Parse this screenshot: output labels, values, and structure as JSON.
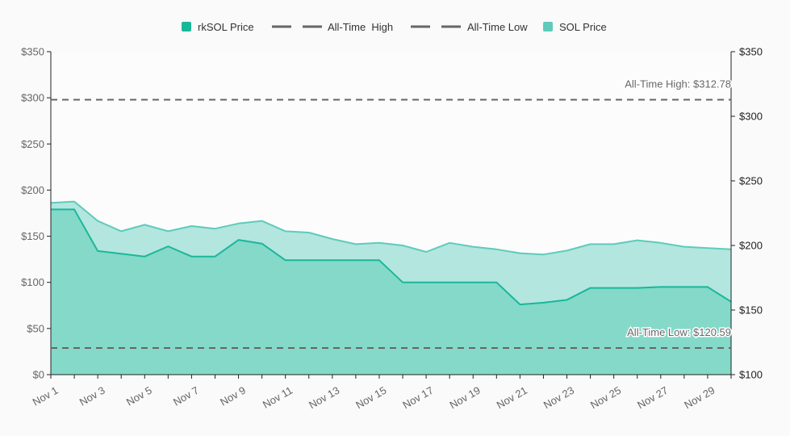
{
  "colors": {
    "rksol": "#1ab79a",
    "rksol_fill": "#85d9c9",
    "sol": "#5ecbbb",
    "sol_fill": "#b3e6df",
    "reference_line": "#666666",
    "axis": "#222222",
    "text": "#666666",
    "background": "#fafafa"
  },
  "chart_data": {
    "type": "area",
    "title": "",
    "xlabel": "",
    "ylabel": "",
    "grid": false,
    "legend_position": "top-center",
    "legend": [
      "rkSOL Price",
      "All-Time  High",
      "All-Time Low",
      "SOL Price"
    ],
    "x": [
      "Nov 1",
      "Nov 2",
      "Nov 3",
      "Nov 4",
      "Nov 5",
      "Nov 6",
      "Nov 7",
      "Nov 8",
      "Nov 9",
      "Nov 10",
      "Nov 11",
      "Nov 12",
      "Nov 13",
      "Nov 14",
      "Nov 15",
      "Nov 16",
      "Nov 17",
      "Nov 18",
      "Nov 19",
      "Nov 20",
      "Nov 21",
      "Nov 22",
      "Nov 23",
      "Nov 24",
      "Nov 25",
      "Nov 26",
      "Nov 27",
      "Nov 28",
      "Nov 29",
      "Nov 30"
    ],
    "x_tick_labels": [
      "Nov 1",
      "Nov 3",
      "Nov 5",
      "Nov 7",
      "Nov 9",
      "Nov 11",
      "Nov 13",
      "Nov 15",
      "Nov 17",
      "Nov 19",
      "Nov 21",
      "Nov 23",
      "Nov 25",
      "Nov 27",
      "Nov 29"
    ],
    "series": [
      {
        "name": "rkSOL Price",
        "axis": "left",
        "values": [
          179,
          179,
          134,
          131,
          128,
          139,
          128,
          128,
          146,
          142,
          124,
          124,
          124,
          124,
          124,
          100,
          100,
          100,
          100,
          100,
          76,
          78,
          81,
          94,
          94,
          94,
          95,
          95,
          95,
          79
        ]
      },
      {
        "name": "SOL Price",
        "axis": "right",
        "values": [
          233,
          234,
          219,
          211,
          216,
          211,
          215,
          213,
          217,
          219,
          211,
          210,
          205,
          201,
          202,
          200,
          195,
          202,
          199,
          197,
          194,
          193,
          196,
          201,
          201,
          204,
          202,
          199,
          198,
          197
        ]
      }
    ],
    "left_axis": {
      "ylim": [
        0,
        350
      ],
      "ticks": [
        0,
        50,
        100,
        150,
        200,
        250,
        300,
        350
      ],
      "tick_labels": [
        "$0",
        "$50",
        "$100",
        "$150",
        "$200",
        "$250",
        "$300",
        "$350"
      ]
    },
    "right_axis": {
      "ylim": [
        100,
        350
      ],
      "ticks": [
        100,
        150,
        200,
        250,
        300,
        350
      ],
      "tick_labels": [
        "$100",
        "$150",
        "$200",
        "$250",
        "$300",
        "$350"
      ]
    },
    "reference_lines": [
      {
        "name": "All-Time  High",
        "value": 312.78,
        "axis": "right",
        "label": "All-Time High: $312.78"
      },
      {
        "name": "All-Time Low",
        "value": 120.59,
        "axis": "right",
        "label": "All-Time Low: $120.59"
      }
    ]
  }
}
